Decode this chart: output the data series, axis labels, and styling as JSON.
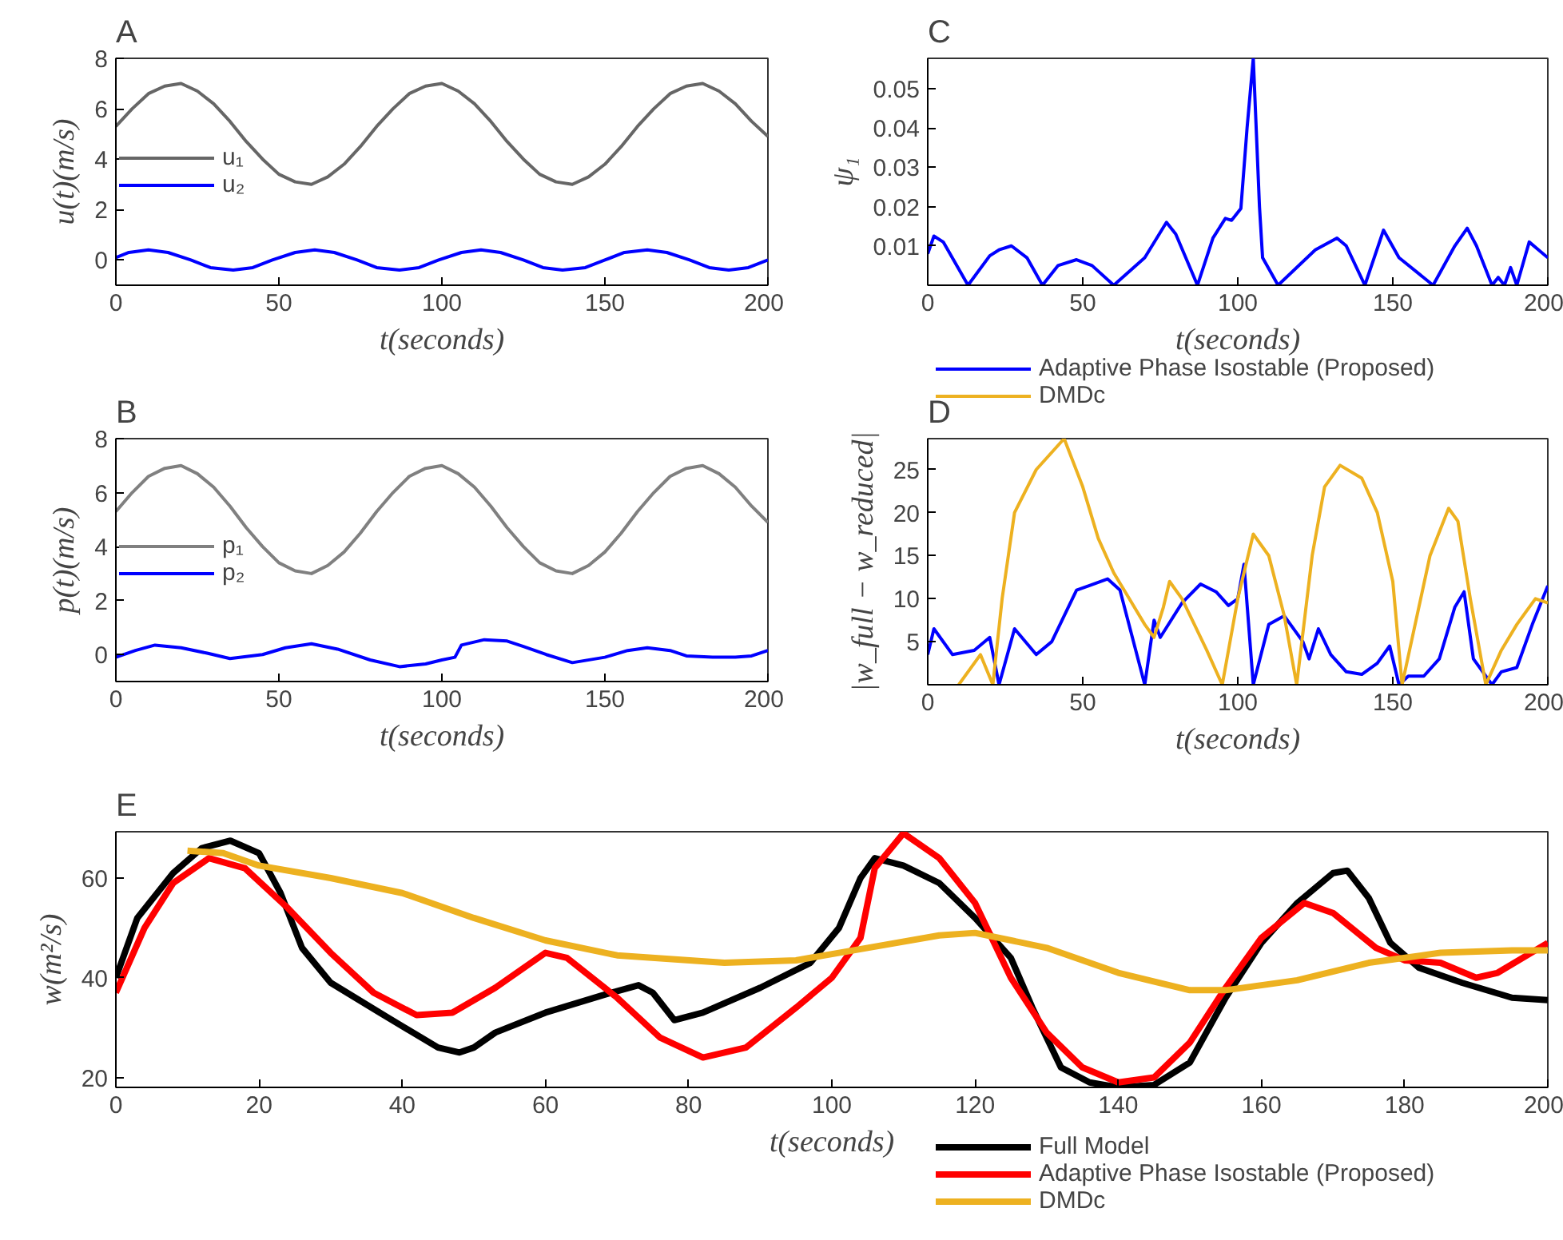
{
  "chart_data": [
    {
      "type": "line",
      "title": "A",
      "xlabel": "t(seconds)",
      "ylabel": "u(t)(m/s)",
      "xlim": [
        0,
        200
      ],
      "ylim": [
        -1,
        8
      ],
      "xticks": [
        0,
        50,
        100,
        150,
        200
      ],
      "yticks": [
        0,
        2,
        4,
        6,
        8
      ],
      "grid": false,
      "legend": "center left",
      "series": [
        {
          "name": "u₁",
          "color": "#666666",
          "x": [
            0,
            5,
            10,
            15,
            20,
            25,
            30,
            35,
            40,
            45,
            50,
            55,
            60,
            65,
            70,
            75,
            80,
            85,
            90,
            95,
            100,
            105,
            110,
            115,
            120,
            125,
            130,
            135,
            140,
            145,
            150,
            155,
            160,
            165,
            170,
            175,
            180,
            185,
            190,
            195,
            200
          ],
          "values": [
            5.3,
            6.0,
            6.6,
            6.9,
            7.0,
            6.7,
            6.2,
            5.5,
            4.7,
            4.0,
            3.4,
            3.1,
            3.0,
            3.3,
            3.8,
            4.5,
            5.3,
            6.0,
            6.6,
            6.9,
            7.0,
            6.7,
            6.2,
            5.5,
            4.7,
            4.0,
            3.4,
            3.1,
            3.0,
            3.3,
            3.8,
            4.5,
            5.3,
            6.0,
            6.6,
            6.9,
            7.0,
            6.7,
            6.2,
            5.5,
            4.9
          ]
        },
        {
          "name": "u₂",
          "color": "#0000ff",
          "x": [
            0,
            4,
            10,
            16,
            23,
            29,
            36,
            42,
            48,
            55,
            61,
            67,
            74,
            80,
            87,
            93,
            99,
            106,
            112,
            118,
            125,
            131,
            137,
            144,
            150,
            156,
            163,
            169,
            176,
            182,
            188,
            194,
            200
          ],
          "values": [
            0.1,
            0.3,
            0.4,
            0.3,
            0,
            -0.3,
            -0.4,
            -0.3,
            0,
            0.3,
            0.4,
            0.3,
            0,
            -0.3,
            -0.4,
            -0.3,
            0,
            0.3,
            0.4,
            0.3,
            0,
            -0.3,
            -0.4,
            -0.3,
            0,
            0.3,
            0.4,
            0.3,
            0,
            -0.3,
            -0.4,
            -0.3,
            0
          ]
        }
      ]
    },
    {
      "type": "line",
      "title": "C",
      "xlabel": "t(seconds)",
      "ylabel": "ψ₁",
      "xlim": [
        0,
        200
      ],
      "ylim": [
        0,
        0.0577
      ],
      "xticks": [
        0,
        50,
        100,
        150,
        200
      ],
      "yticks": [
        0.01,
        0.02,
        0.03,
        0.04,
        0.05
      ],
      "grid": false,
      "series": [
        {
          "color": "#0000ff",
          "x": [
            0,
            2,
            5,
            13,
            20,
            23,
            27,
            32,
            37,
            42,
            48,
            53,
            60,
            70,
            77,
            80,
            87,
            92,
            96,
            98,
            101,
            103,
            105,
            107,
            108,
            113,
            125,
            132,
            135,
            141,
            147,
            152,
            163,
            170,
            174,
            177,
            182,
            184,
            186,
            188,
            190,
            194,
            197,
            200
          ],
          "values": [
            0.008,
            0.0125,
            0.011,
            0,
            0.0075,
            0.009,
            0.01,
            0.007,
            0,
            0.005,
            0.0065,
            0.005,
            0,
            0.007,
            0.016,
            0.013,
            0,
            0.012,
            0.017,
            0.0165,
            0.0195,
            0.04,
            0.0577,
            0.02,
            0.007,
            0,
            0.009,
            0.012,
            0.01,
            0,
            0.014,
            0.007,
            0,
            0.01,
            0.0145,
            0.01,
            0,
            0.002,
            0,
            0.0045,
            0,
            0.011,
            0.009,
            0.007
          ]
        }
      ]
    },
    {
      "type": "line",
      "title": "B",
      "xlabel": "t(seconds)",
      "ylabel": "p(t)(m/s)",
      "xlim": [
        0,
        200
      ],
      "ylim": [
        -1,
        8
      ],
      "xticks": [
        0,
        50,
        100,
        150,
        200
      ],
      "yticks": [
        0,
        2,
        4,
        6,
        8
      ],
      "grid": false,
      "legend": "center left",
      "series": [
        {
          "name": "p₁",
          "color": "#808080",
          "x": [
            0,
            5,
            10,
            15,
            20,
            25,
            30,
            35,
            40,
            45,
            50,
            55,
            60,
            65,
            70,
            75,
            80,
            85,
            90,
            95,
            100,
            105,
            110,
            115,
            120,
            125,
            130,
            135,
            140,
            145,
            150,
            155,
            160,
            165,
            170,
            175,
            180,
            185,
            190,
            195,
            200
          ],
          "values": [
            5.3,
            6.0,
            6.6,
            6.9,
            7.0,
            6.7,
            6.2,
            5.5,
            4.7,
            4.0,
            3.4,
            3.1,
            3.0,
            3.3,
            3.8,
            4.5,
            5.3,
            6.0,
            6.6,
            6.9,
            7.0,
            6.7,
            6.2,
            5.5,
            4.7,
            4.0,
            3.4,
            3.1,
            3.0,
            3.3,
            3.8,
            4.5,
            5.3,
            6.0,
            6.6,
            6.9,
            7.0,
            6.7,
            6.2,
            5.5,
            4.9
          ]
        },
        {
          "name": "p₂",
          "color": "#0000ff",
          "x": [
            0,
            6,
            12,
            20,
            28,
            35,
            45,
            52,
            60,
            68,
            78,
            87,
            95,
            100,
            104,
            106,
            113,
            120,
            125,
            132,
            140,
            150,
            157,
            163,
            170,
            175,
            183,
            190,
            195,
            200
          ],
          "values": [
            -0.1,
            0.15,
            0.35,
            0.25,
            0.05,
            -0.15,
            0.0,
            0.25,
            0.4,
            0.2,
            -0.2,
            -0.45,
            -0.35,
            -0.2,
            -0.1,
            0.35,
            0.55,
            0.5,
            0.3,
            0.0,
            -0.3,
            -0.1,
            0.15,
            0.25,
            0.15,
            -0.05,
            -0.1,
            -0.1,
            -0.05,
            0.15
          ]
        }
      ]
    },
    {
      "type": "line",
      "title": "D",
      "xlabel": "t(seconds)",
      "ylabel": "|w_full − w_reduced|",
      "xlim": [
        0,
        200
      ],
      "ylim": [
        0,
        28.6
      ],
      "xticks": [
        0,
        50,
        100,
        150,
        200
      ],
      "yticks": [
        5,
        10,
        15,
        20,
        25
      ],
      "grid": false,
      "legend": "top",
      "series": [
        {
          "name": "Adaptive Phase Isostable (Proposed)",
          "color": "#0000ff",
          "x": [
            0,
            2,
            8,
            15,
            20,
            23,
            28,
            35,
            40,
            48,
            52,
            58,
            62,
            70,
            73,
            75,
            82,
            88,
            93,
            97,
            100,
            102,
            105,
            110,
            115,
            121,
            123,
            126,
            130,
            135,
            140,
            145,
            149,
            152,
            155,
            160,
            165,
            170,
            173,
            176,
            182,
            185,
            190,
            195,
            200
          ],
          "values": [
            3.5,
            6.5,
            3.5,
            4,
            5.5,
            0,
            6.5,
            3.5,
            5,
            11,
            11.5,
            12.3,
            11,
            0,
            7.5,
            5.5,
            9.5,
            11.7,
            10.8,
            9.2,
            10,
            14,
            0,
            7,
            8,
            5,
            3,
            6.5,
            3.5,
            1.5,
            1.2,
            2.5,
            4.5,
            0,
            1,
            1,
            3,
            9,
            10.8,
            3,
            0,
            1.5,
            2,
            7,
            11.5
          ]
        },
        {
          "name": "DMDc",
          "color": "#edb120",
          "x": [
            10,
            17,
            21,
            24,
            28,
            35,
            44,
            50,
            55,
            60,
            65,
            70,
            73,
            76,
            78,
            82,
            90,
            95,
            100,
            105,
            110,
            115,
            119,
            124,
            128,
            133,
            140,
            145,
            150,
            153,
            156,
            162,
            168,
            171,
            175,
            180,
            185,
            190,
            196,
            200
          ],
          "values": [
            0,
            3.5,
            0,
            10,
            20,
            25,
            28.6,
            23,
            17,
            13,
            10,
            7,
            5.5,
            9,
            12,
            10,
            4,
            0,
            10,
            17.5,
            15,
            8,
            0,
            15,
            23,
            25.5,
            24,
            20,
            12,
            0,
            5,
            15,
            20.5,
            19,
            10,
            0,
            4,
            7,
            10,
            9.5
          ]
        }
      ]
    },
    {
      "type": "line",
      "title": "E",
      "xlabel": "t(seconds)",
      "ylabel": "w(m²/s)",
      "xlim": [
        0,
        200
      ],
      "ylim": [
        18,
        69.3
      ],
      "xticks": [
        0,
        20,
        40,
        60,
        80,
        100,
        120,
        140,
        160,
        180,
        200
      ],
      "yticks": [
        20,
        40,
        60
      ],
      "grid": false,
      "legend": "bottom right",
      "series": [
        {
          "name": "Full Model",
          "color": "#000000",
          "x": [
            0,
            3,
            8,
            12,
            16,
            20,
            23,
            26,
            30,
            38,
            45,
            48,
            50,
            53,
            60,
            68,
            73,
            75,
            78,
            82,
            90,
            97,
            101,
            104,
            106,
            110,
            115,
            120,
            125,
            128,
            132,
            136,
            140,
            145,
            150,
            155,
            160,
            165,
            170,
            172,
            175,
            178,
            182,
            188,
            195,
            200
          ],
          "values": [
            40,
            52,
            61,
            66,
            67.5,
            65,
            57,
            46,
            39,
            32,
            26,
            25,
            26,
            29,
            33,
            36.5,
            38.5,
            37,
            31.5,
            33,
            38,
            43,
            50,
            60,
            64,
            62.5,
            59,
            52,
            44,
            34,
            22,
            19,
            18,
            18.5,
            23,
            36,
            47,
            55,
            61,
            61.5,
            56,
            47,
            42,
            39,
            36,
            35.5
          ]
        },
        {
          "name": "Adaptive Phase Isostable (Proposed)",
          "color": "#ff0000",
          "x": [
            0,
            4,
            8,
            13,
            18,
            24,
            30,
            36,
            42,
            47,
            53,
            60,
            63,
            70,
            76,
            82,
            88,
            95,
            100,
            104,
            106,
            110,
            115,
            120,
            125,
            130,
            135,
            140,
            145,
            150,
            155,
            160,
            166,
            170,
            176,
            180,
            185,
            190,
            193,
            200
          ],
          "values": [
            37,
            50,
            59,
            64,
            62,
            54,
            45,
            37,
            32.5,
            33,
            38,
            45,
            44,
            36,
            28,
            24,
            26,
            34,
            40,
            48,
            62,
            69,
            64,
            55,
            40,
            29,
            22,
            19,
            20,
            27,
            38,
            48,
            55,
            53,
            46,
            43.5,
            43,
            40,
            41,
            47
          ]
        },
        {
          "name": "DMDc",
          "color": "#edb120",
          "x": [
            10,
            15,
            20,
            30,
            40,
            50,
            60,
            70,
            85,
            95,
            105,
            115,
            120,
            130,
            140,
            150,
            155,
            165,
            175,
            185,
            195,
            200
          ],
          "values": [
            65.5,
            65,
            62.5,
            60,
            57,
            52,
            47.5,
            44.5,
            43,
            43.5,
            46,
            48.5,
            49,
            46,
            41,
            37.5,
            37.5,
            39.5,
            43,
            45,
            45.5,
            45.5
          ]
        }
      ]
    }
  ]
}
